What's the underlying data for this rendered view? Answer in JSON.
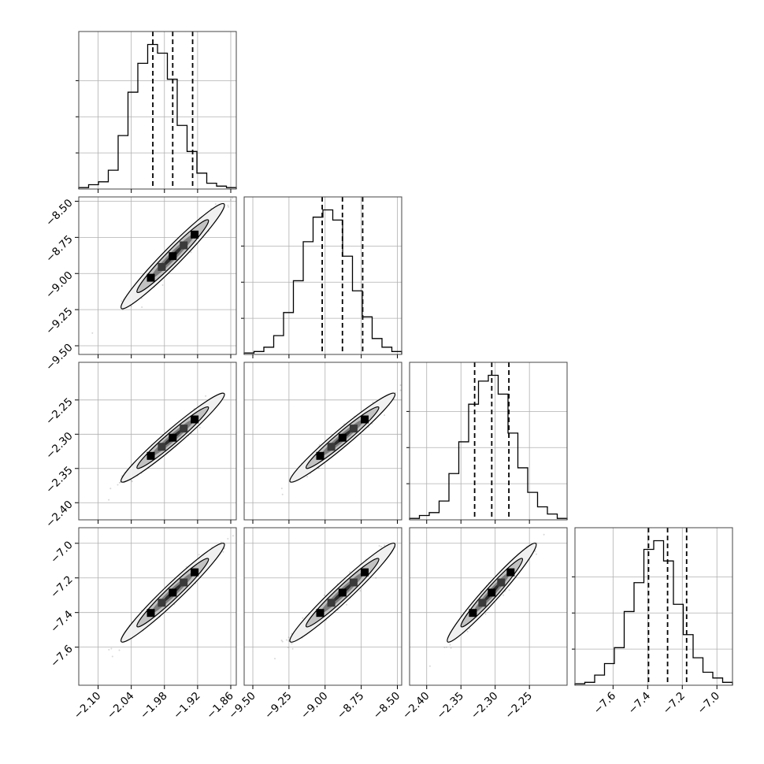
{
  "chart_data": {
    "type": "corner",
    "grid": true,
    "parameters": [
      {
        "mean": -1.965,
        "sd": 0.036,
        "range": [
          -2.135,
          -1.85
        ],
        "quantiles": [
          -2.001,
          -1.965,
          -1.929
        ],
        "ticks": [
          -2.1,
          -2.04,
          -1.98,
          -1.92,
          -1.86
        ],
        "tick_labels": [
          "−2.10",
          "−2.04",
          "−1.98",
          "−1.92",
          "−1.86"
        ]
      },
      {
        "mean": -8.88,
        "sd": 0.14,
        "range": [
          -9.56,
          -8.47
        ],
        "quantiles": [
          -9.02,
          -8.88,
          -8.74
        ],
        "ticks": [
          -9.5,
          -9.25,
          -9.0,
          -8.75,
          -8.5
        ],
        "tick_labels": [
          "−9.50",
          "−9.25",
          "−9.00",
          "−8.75",
          "−8.50"
        ]
      },
      {
        "mean": -2.305,
        "sd": 0.025,
        "range": [
          -2.425,
          -2.195
        ],
        "quantiles": [
          -2.33,
          -2.305,
          -2.28
        ],
        "ticks": [
          -2.4,
          -2.35,
          -2.3,
          -2.25
        ],
        "tick_labels": [
          "−2.40",
          "−2.35",
          "−2.30",
          "−2.25"
        ]
      },
      {
        "mean": -7.285,
        "sd": 0.11,
        "range": [
          -7.82,
          -6.91
        ],
        "quantiles": [
          -7.395,
          -7.285,
          -7.175
        ],
        "ticks": [
          -7.6,
          -7.4,
          -7.2,
          -7.0
        ],
        "tick_labels": [
          "−7.6",
          "−7.4",
          "−7.2",
          "−7.0"
        ]
      }
    ],
    "diagonal_histograms": [
      [
        0.01,
        0.03,
        0.05,
        0.13,
        0.37,
        0.67,
        0.87,
        1.0,
        0.94,
        0.76,
        0.44,
        0.26,
        0.11,
        0.04,
        0.02,
        0.01
      ],
      [
        0.01,
        0.02,
        0.05,
        0.13,
        0.29,
        0.51,
        0.78,
        0.95,
        1.0,
        0.93,
        0.68,
        0.44,
        0.26,
        0.11,
        0.05,
        0.02
      ],
      [
        0.01,
        0.03,
        0.05,
        0.13,
        0.32,
        0.54,
        0.8,
        0.96,
        1.0,
        0.87,
        0.6,
        0.36,
        0.19,
        0.09,
        0.04,
        0.01
      ],
      [
        0.01,
        0.02,
        0.07,
        0.15,
        0.26,
        0.51,
        0.71,
        0.94,
        1.0,
        0.86,
        0.56,
        0.35,
        0.19,
        0.09,
        0.05,
        0.02
      ]
    ],
    "correlation": 0.97,
    "colors": {
      "line": "#000000",
      "grid": "#b0b0b0",
      "frame": "#444444",
      "sample": "#8c8c8c"
    }
  }
}
